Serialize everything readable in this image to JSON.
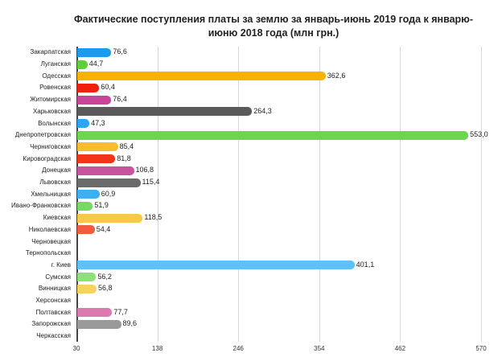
{
  "chart_data": {
    "type": "bar",
    "orientation": "horizontal",
    "title": "Фактические поступления платы за землю за январь-июнь 2019 года к январю-июню 2018 года (млн грн.)",
    "title_lines": [
      "Фактические поступления платы за землю за январь-июнь 2019 года к январю-",
      "июню 2018 года (млн грн.)"
    ],
    "xlabel": "",
    "ylabel": "",
    "xlim": [
      30,
      570
    ],
    "xticks": [
      30,
      138,
      246,
      354,
      462,
      570
    ],
    "xtick_labels": [
      "30",
      "138",
      "246",
      "354",
      "462",
      "570"
    ],
    "grid": true,
    "legend": null,
    "categories": [
      "Закарпатская",
      "Луганская",
      "Одесская",
      "Ровенская",
      "Житомирская",
      "Харьковская",
      "Волынская",
      "Днепропетровская",
      "Черниговская",
      "Кировоградская",
      "Донецкая",
      "Львовская",
      "Хмельницкая",
      "Ивано-Франковская",
      "Киевская",
      "Николаевская",
      "Черновецкая",
      "Тернопольская",
      "г. Киев",
      "Сумская",
      "Винницкая",
      "Херсонская",
      "Полтавская",
      "Запорожская",
      "Черкасская"
    ],
    "values": [
      76.6,
      44.7,
      362.6,
      60.4,
      76.4,
      264.3,
      47.3,
      553.0,
      85.4,
      81.8,
      106.8,
      115.4,
      60.9,
      51.9,
      118.5,
      54.4,
      null,
      null,
      401.1,
      56.2,
      56.8,
      null,
      77.7,
      89.6,
      null
    ],
    "value_labels": [
      "76,6",
      "44,7",
      "362,6",
      "60,4",
      "76,4",
      "264,3",
      "47,3",
      "553,0",
      "85,4",
      "81,8",
      "106,8",
      "115,4",
      "60,9",
      "51,9",
      "118,5",
      "54,4",
      "",
      "",
      "401,1",
      "56,2",
      "56,8",
      "",
      "77,7",
      "89,6",
      ""
    ],
    "colors": [
      "#1a9cf0",
      "#5ecf3c",
      "#f6b300",
      "#f0200c",
      "#c8469a",
      "#5a5a5a",
      "#2aa6f2",
      "#6ad84a",
      "#f7be2c",
      "#f2341a",
      "#c9549e",
      "#6b6b6b",
      "#3cb0f4",
      "#77d862",
      "#f7c94a",
      "#f25a40",
      "",
      "",
      "#5ec2fa",
      "#8ee07a",
      "#f8d25e",
      "",
      "#dc79ae",
      "#9a9a9a",
      ""
    ]
  }
}
